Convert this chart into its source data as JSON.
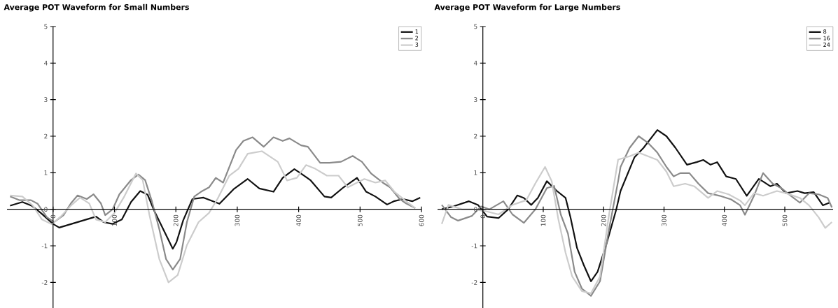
{
  "chart_data": [
    {
      "type": "line",
      "title": "Average POT Waveform for Small Numbers",
      "xlim": [
        -75,
        600
      ],
      "ylim": [
        -2.7,
        5
      ],
      "xticks": [
        0,
        100,
        200,
        300,
        400,
        500,
        600
      ],
      "yticks": [
        -2,
        -1,
        0,
        1,
        2,
        3,
        4,
        5
      ],
      "legend": "top right",
      "series": [
        {
          "name": "1",
          "color": "#111111",
          "x": [
            -70,
            -50,
            -35,
            -20,
            0,
            10,
            30,
            50,
            70,
            82,
            97,
            112,
            127,
            142,
            154,
            165,
            181,
            195,
            201,
            212,
            227,
            245,
            271,
            294,
            317,
            336,
            359,
            374,
            393,
            402,
            419,
            442,
            453,
            473,
            495,
            510,
            525,
            544,
            555,
            570,
            585,
            598
          ],
          "values": [
            0.1,
            0.2,
            0.1,
            -0.1,
            -0.4,
            -0.5,
            -0.4,
            -0.3,
            -0.2,
            -0.35,
            -0.4,
            -0.28,
            0.2,
            0.5,
            0.4,
            -0.05,
            -0.6,
            -1.08,
            -0.9,
            -0.3,
            0.28,
            0.32,
            0.15,
            0.55,
            0.83,
            0.57,
            0.48,
            0.86,
            1.1,
            1.0,
            0.8,
            0.35,
            0.32,
            0.6,
            0.86,
            0.48,
            0.35,
            0.13,
            0.22,
            0.28,
            0.22,
            0.32
          ]
        },
        {
          "name": "2",
          "color": "#8a8a8a",
          "x": [
            -70,
            -55,
            -36,
            -25,
            -10,
            2,
            17,
            29,
            40,
            55,
            66,
            78,
            85,
            97,
            108,
            127,
            139,
            150,
            161,
            173,
            184,
            195,
            207,
            218,
            230,
            241,
            254,
            265,
            277,
            298,
            310,
            325,
            343,
            359,
            374,
            385,
            404,
            415,
            435,
            450,
            469,
            488,
            503,
            518,
            537,
            549,
            564,
            575,
            590
          ],
          "values": [
            0.35,
            0.25,
            0.25,
            0.15,
            -0.22,
            -0.35,
            -0.16,
            0.16,
            0.38,
            0.28,
            0.41,
            0.16,
            -0.16,
            0,
            0.41,
            0.8,
            0.95,
            0.8,
            0.22,
            -0.54,
            -1.36,
            -1.65,
            -1.36,
            -0.35,
            0.35,
            0.48,
            0.6,
            0.86,
            0.73,
            1.62,
            1.87,
            1.97,
            1.71,
            1.97,
            1.87,
            1.94,
            1.75,
            1.71,
            1.27,
            1.27,
            1.3,
            1.46,
            1.3,
            0.98,
            0.73,
            0.6,
            0.29,
            0.16,
            0.03
          ]
        },
        {
          "name": "3",
          "color": "#cccccc",
          "x": [
            -70,
            -50,
            -33,
            -18,
            -2,
            13,
            29,
            44,
            59,
            70,
            85,
            100,
            116,
            135,
            146,
            157,
            173,
            188,
            203,
            218,
            237,
            254,
            268,
            287,
            302,
            317,
            340,
            366,
            381,
            397,
            412,
            427,
            446,
            465,
            480,
            507,
            525,
            541,
            556,
            575,
            590
          ],
          "values": [
            0.38,
            0.35,
            0.1,
            -0.28,
            -0.41,
            -0.19,
            0.1,
            0.32,
            0.16,
            -0.28,
            -0.35,
            -0.1,
            0.35,
            0.98,
            0.8,
            -0.16,
            -1.36,
            -2.0,
            -1.8,
            -0.98,
            -0.35,
            -0.1,
            0.29,
            0.92,
            1.11,
            1.52,
            1.59,
            1.3,
            0.79,
            0.86,
            1.21,
            1.11,
            0.92,
            0.92,
            0.6,
            0.83,
            0.73,
            0.79,
            0.48,
            0.22,
            0.03
          ]
        }
      ]
    },
    {
      "type": "line",
      "title": "Average POT Waveform for Large Numbers",
      "xlim": [
        -75,
        580
      ],
      "ylim": [
        -2.7,
        5
      ],
      "xticks": [
        0,
        100,
        200,
        300,
        400,
        500
      ],
      "yticks": [
        -2,
        -1,
        0,
        1,
        2,
        3,
        4,
        5
      ],
      "legend": "top right",
      "series": [
        {
          "name": "8",
          "color": "#111111",
          "x": [
            -68,
            -49,
            -23,
            -8,
            7,
            26,
            42,
            57,
            68,
            80,
            91,
            106,
            122,
            137,
            145,
            156,
            167,
            179,
            190,
            205,
            221,
            228,
            251,
            266,
            289,
            304,
            319,
            338,
            354,
            365,
            377,
            388,
            403,
            419,
            437,
            457,
            464,
            476,
            487,
            502,
            521,
            533,
            548,
            563,
            574
          ],
          "values": [
            0,
            0.08,
            0.22,
            0.12,
            -0.2,
            -0.24,
            0,
            0.38,
            0.31,
            0.12,
            0.31,
            0.77,
            0.51,
            0.31,
            -0.21,
            -1.06,
            -1.52,
            -1.97,
            -1.71,
            -0.93,
            0,
            0.5,
            1.42,
            1.68,
            2.17,
            2.0,
            1.68,
            1.22,
            1.29,
            1.35,
            1.22,
            1.29,
            0.9,
            0.83,
            0.37,
            0.83,
            0.76,
            0.63,
            0.7,
            0.44,
            0.5,
            0.44,
            0.47,
            0.11,
            0.18
          ]
        },
        {
          "name": "16",
          "color": "#8a8a8a",
          "x": [
            -68,
            -53,
            -41,
            -18,
            -3,
            11,
            34,
            49,
            68,
            87,
            106,
            118,
            129,
            141,
            152,
            164,
            179,
            194,
            209,
            224,
            228,
            243,
            258,
            274,
            289,
            304,
            316,
            327,
            342,
            357,
            373,
            392,
            411,
            426,
            434,
            449,
            464,
            480,
            495,
            510,
            525,
            540,
            556,
            571,
            578
          ],
          "values": [
            0.12,
            -0.21,
            -0.31,
            -0.18,
            0.08,
            0,
            0.22,
            -0.14,
            -0.37,
            0,
            0.58,
            0.64,
            -0.14,
            -0.67,
            -1.71,
            -2.17,
            -2.37,
            -1.97,
            -0.54,
            0.77,
            1.16,
            1.68,
            2.0,
            1.81,
            1.55,
            1.16,
            0.9,
            0.99,
            0.99,
            0.7,
            0.44,
            0.37,
            0.27,
            0.11,
            -0.15,
            0.37,
            0.99,
            0.7,
            0.57,
            0.37,
            0.18,
            0.44,
            0.41,
            0.31,
            0.05
          ]
        },
        {
          "name": "24",
          "color": "#cccccc",
          "x": [
            -68,
            -57,
            -34,
            -15,
            4,
            26,
            49,
            72,
            87,
            103,
            114,
            125,
            137,
            148,
            164,
            179,
            194,
            209,
            224,
            243,
            258,
            289,
            304,
            316,
            335,
            350,
            373,
            388,
            407,
            426,
            434,
            449,
            464,
            487,
            502,
            525,
            540,
            556,
            567,
            578
          ],
          "values": [
            -0.4,
            0.12,
            0,
            0,
            -0.05,
            -0.14,
            0.12,
            0.25,
            0.71,
            1.16,
            0.77,
            -0.27,
            -1.19,
            -1.84,
            -2.24,
            -2.3,
            -1.84,
            -0.14,
            1.36,
            1.45,
            1.55,
            1.35,
            1.03,
            0.63,
            0.7,
            0.63,
            0.31,
            0.5,
            0.41,
            0.24,
            0.11,
            0.44,
            0.37,
            0.5,
            0.44,
            0.31,
            0.11,
            -0.22,
            -0.51,
            -0.35
          ]
        }
      ]
    }
  ]
}
